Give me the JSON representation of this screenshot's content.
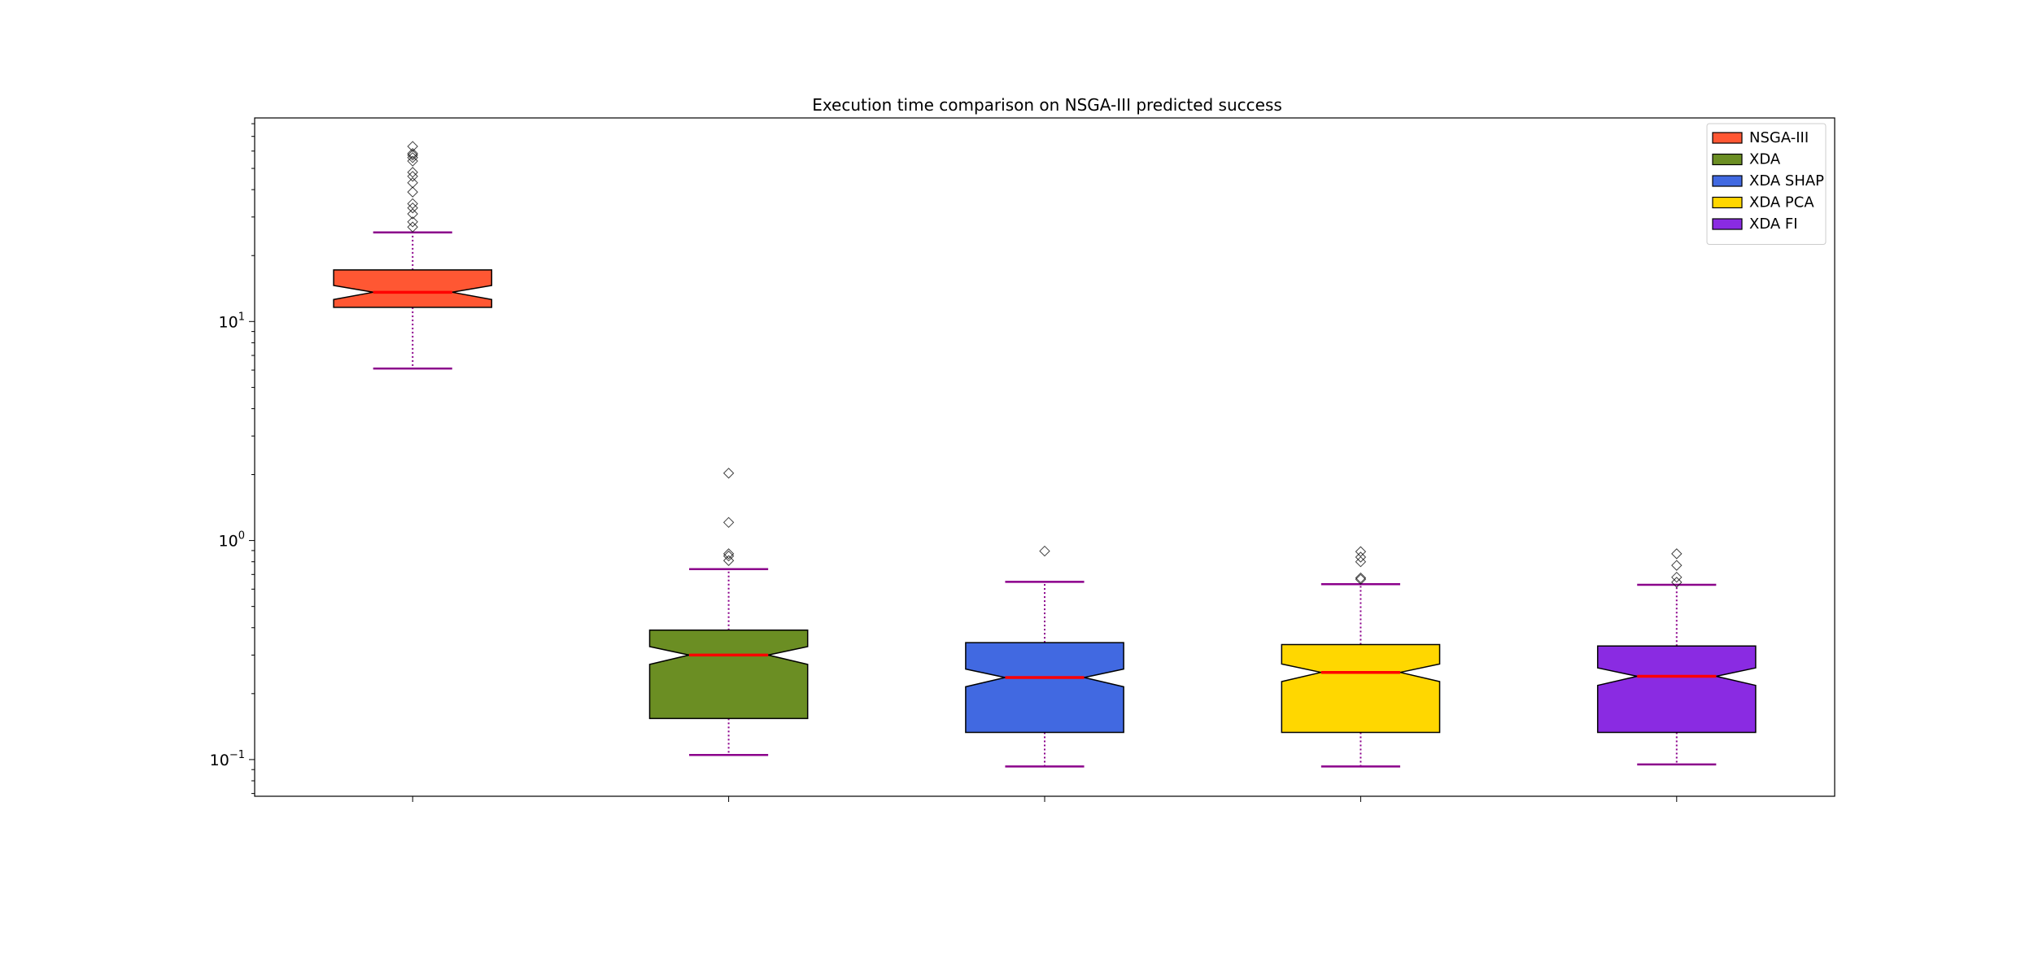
{
  "chart_data": {
    "type": "box",
    "title": "Execution time comparison on NSGA-III predicted success",
    "xlabel": "",
    "ylabel": "",
    "y_scale": "log",
    "ylim": [
      0.068,
      85
    ],
    "y_tick_labels": [
      {
        "value": 0.1,
        "base": "10",
        "exp": "−1"
      },
      {
        "value": 1,
        "base": "10",
        "exp": "0"
      },
      {
        "value": 10,
        "base": "10",
        "exp": "1"
      }
    ],
    "notched": true,
    "median_color": "#ff0000",
    "whisker_color": "#8b008b",
    "legend_position": "top-right",
    "series": [
      {
        "name": "NSGA-III",
        "color": "#ff5733",
        "whisker_low": 6.1,
        "q1": 11.6,
        "median": 13.6,
        "q3": 17.2,
        "whisker_high": 25.5,
        "notch": [
          12.6,
          14.6
        ],
        "outliers": [
          27,
          28.5,
          31,
          33,
          34.5,
          39,
          43,
          46,
          48,
          54,
          56,
          57.5,
          58.5,
          63
        ]
      },
      {
        "name": "XDA",
        "color": "#6b8e23",
        "whisker_low": 0.105,
        "q1": 0.154,
        "median": 0.3,
        "q3": 0.39,
        "whisker_high": 0.74,
        "notch": [
          0.272,
          0.328
        ],
        "outliers": [
          0.81,
          0.85,
          0.87,
          1.21,
          2.03
        ]
      },
      {
        "name": "XDA SHAP",
        "color": "#4169e1",
        "whisker_low": 0.093,
        "q1": 0.133,
        "median": 0.237,
        "q3": 0.342,
        "whisker_high": 0.648,
        "notch": [
          0.215,
          0.259
        ],
        "outliers": [
          0.895
        ]
      },
      {
        "name": "XDA PCA",
        "color": "#ffd700",
        "whisker_low": 0.093,
        "q1": 0.133,
        "median": 0.25,
        "q3": 0.335,
        "whisker_high": 0.632,
        "notch": [
          0.227,
          0.273
        ],
        "outliers": [
          0.665,
          0.675,
          0.8,
          0.84,
          0.89
        ]
      },
      {
        "name": "XDA FI",
        "color": "#8a2be2",
        "whisker_low": 0.095,
        "q1": 0.133,
        "median": 0.24,
        "q3": 0.33,
        "whisker_high": 0.628,
        "notch": [
          0.218,
          0.262
        ],
        "outliers": [
          0.645,
          0.68,
          0.77,
          0.87
        ]
      }
    ]
  }
}
